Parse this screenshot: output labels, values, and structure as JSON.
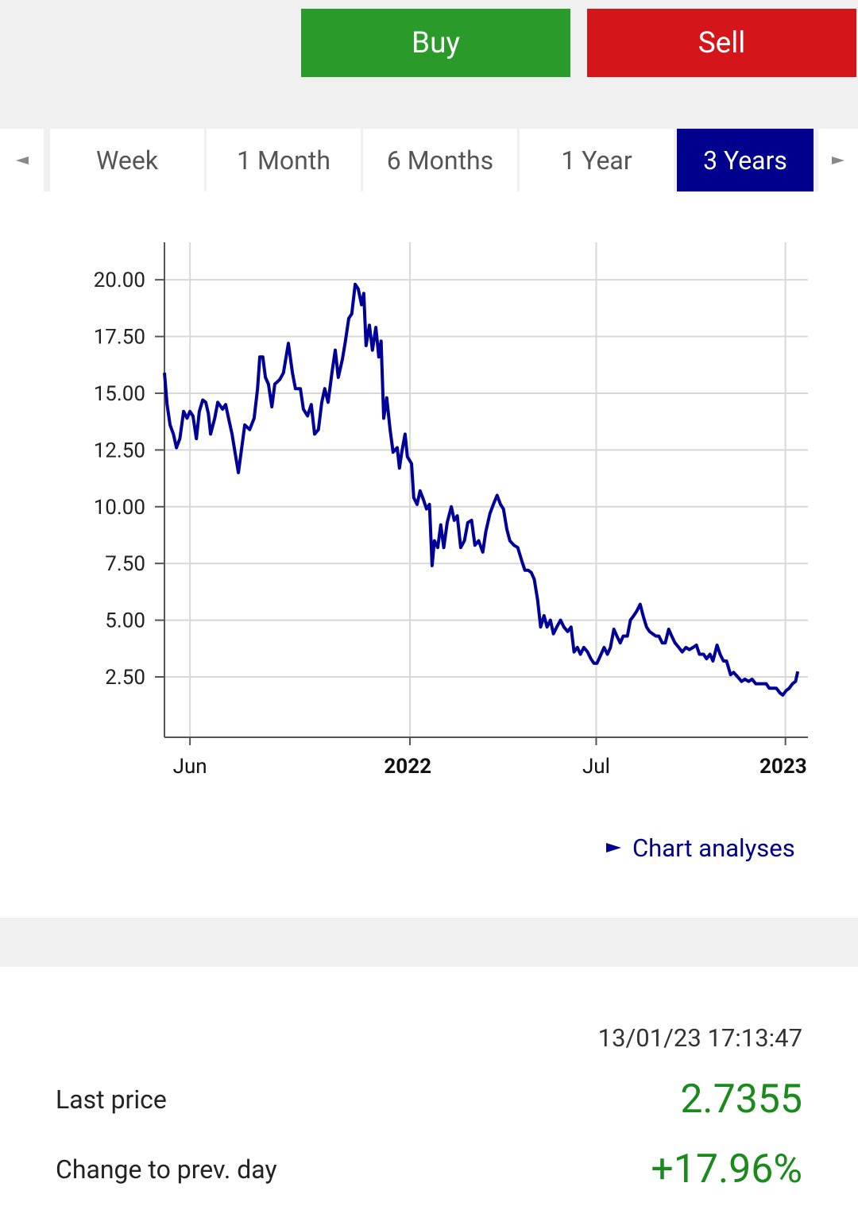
{
  "actions": {
    "buy": "Buy",
    "sell": "Sell"
  },
  "tabs": [
    {
      "label": "Week",
      "selected": false
    },
    {
      "label": "1 Month",
      "selected": false
    },
    {
      "label": "6 Months",
      "selected": false
    },
    {
      "label": "1 Year",
      "selected": false
    },
    {
      "label": "3 Years",
      "selected": true
    }
  ],
  "chart_data": {
    "type": "line",
    "x": [
      2021.346,
      2021.353,
      2021.361,
      2021.37,
      2021.378,
      2021.387,
      2021.397,
      2021.406,
      2021.414,
      2021.422,
      2021.431,
      2021.439,
      2021.448,
      2021.456,
      2021.463,
      2021.469,
      2021.48,
      2021.488,
      2021.501,
      2021.509,
      2021.518,
      2021.526,
      2021.534,
      2021.543,
      2021.551,
      2021.56,
      2021.573,
      2021.585,
      2021.594,
      2021.6,
      2021.608,
      2021.615,
      2021.623,
      2021.632,
      2021.64,
      2021.653,
      2021.663,
      2021.676,
      2021.687,
      2021.695,
      2021.708,
      2021.716,
      2021.727,
      2021.737,
      2021.746,
      2021.756,
      2021.765,
      2021.773,
      2021.782,
      2021.792,
      2021.801,
      2021.809,
      2021.82,
      2021.828,
      2021.837,
      2021.845,
      2021.854,
      2021.862,
      2021.871,
      2021.877,
      2021.883,
      2021.892,
      2021.9,
      2021.909,
      2021.917,
      2021.923,
      2021.93,
      2021.938,
      2021.947,
      2021.955,
      2021.966,
      2021.972,
      2021.978,
      2021.987,
      2021.993,
      2022.004,
      2022.01,
      2022.019,
      2022.027,
      2022.036,
      2022.044,
      2022.052,
      2022.059,
      2022.065,
      2022.074,
      2022.082,
      2022.09,
      2022.099,
      2022.11,
      2022.118,
      2022.126,
      2022.135,
      2022.145,
      2022.154,
      2022.164,
      2022.173,
      2022.183,
      2022.194,
      2022.202,
      2022.213,
      2022.222,
      2022.232,
      2022.241,
      2022.249,
      2022.258,
      2022.266,
      2022.277,
      2022.287,
      2022.298,
      2022.306,
      2022.315,
      2022.323,
      2022.331,
      2022.34,
      2022.348,
      2022.357,
      2022.365,
      2022.374,
      2022.382,
      2022.391,
      2022.401,
      2022.41,
      2022.42,
      2022.429,
      2022.437,
      2022.446,
      2022.454,
      2022.463,
      2022.473,
      2022.482,
      2022.49,
      2022.498,
      2022.509,
      2022.517,
      2022.526,
      2022.534,
      2022.543,
      2022.551,
      2022.56,
      2022.568,
      2022.579,
      2022.587,
      2022.596,
      2022.604,
      2022.613,
      2022.621,
      2022.63,
      2022.638,
      2022.646,
      2022.655,
      2022.663,
      2022.672,
      2022.68,
      2022.689,
      2022.697,
      2022.706,
      2022.716,
      2022.725,
      2022.735,
      2022.744,
      2022.754,
      2022.763,
      2022.771,
      2022.782,
      2022.79,
      2022.799,
      2022.807,
      2022.818,
      2022.826,
      2022.835,
      2022.843,
      2022.854,
      2022.862,
      2022.873,
      2022.883,
      2022.892,
      2022.902,
      2022.911,
      2022.921,
      2022.93,
      2022.938,
      2022.949,
      2022.957,
      2022.966,
      2022.976,
      2022.985,
      2022.993,
      2023.002,
      2023.01,
      2023.019,
      2023.027,
      2023.033
    ],
    "series": [
      {
        "color": "#000099",
        "values": [
          15.9,
          14.5,
          13.6,
          13.2,
          12.6,
          13.0,
          14.2,
          13.9,
          14.2,
          14.0,
          13.0,
          14.2,
          14.7,
          14.6,
          14.1,
          13.2,
          13.9,
          14.6,
          14.3,
          14.5,
          13.8,
          13.2,
          12.4,
          11.5,
          12.5,
          13.6,
          13.4,
          13.9,
          15.2,
          16.6,
          16.6,
          15.7,
          15.4,
          14.4,
          15.4,
          15.6,
          15.9,
          17.2,
          15.9,
          15.2,
          15.2,
          14.3,
          14.0,
          14.5,
          13.2,
          13.4,
          14.6,
          15.2,
          14.6,
          15.9,
          16.9,
          15.7,
          16.5,
          17.3,
          18.3,
          18.5,
          19.8,
          19.6,
          18.9,
          19.4,
          17.1,
          18.0,
          16.9,
          17.9,
          16.6,
          17.3,
          13.9,
          14.8,
          13.4,
          12.4,
          12.6,
          11.7,
          12.4,
          13.2,
          12.2,
          11.9,
          10.4,
          10.1,
          10.7,
          10.3,
          9.9,
          10.1,
          7.4,
          8.5,
          8.2,
          9.2,
          8.2,
          9.3,
          10.0,
          9.4,
          9.6,
          8.2,
          8.5,
          9.3,
          9.4,
          8.3,
          8.5,
          8.0,
          8.9,
          9.7,
          10.1,
          10.5,
          10.1,
          9.9,
          9.0,
          8.5,
          8.3,
          8.2,
          7.6,
          7.2,
          7.2,
          7.1,
          6.8,
          5.9,
          4.7,
          5.2,
          4.7,
          5.0,
          4.4,
          4.7,
          5.0,
          4.7,
          4.5,
          4.7,
          3.6,
          3.8,
          3.5,
          3.8,
          3.6,
          3.3,
          3.1,
          3.1,
          3.5,
          3.8,
          3.5,
          3.8,
          4.6,
          4.3,
          4.0,
          4.3,
          4.3,
          5.0,
          5.2,
          5.4,
          5.7,
          5.2,
          4.7,
          4.5,
          4.4,
          4.3,
          4.3,
          4.0,
          4.0,
          4.6,
          4.3,
          4.0,
          3.8,
          3.6,
          3.8,
          3.7,
          3.8,
          3.9,
          3.5,
          3.5,
          3.3,
          3.5,
          3.2,
          3.9,
          3.5,
          3.2,
          3.2,
          2.6,
          2.7,
          2.5,
          2.3,
          2.4,
          2.3,
          2.4,
          2.2,
          2.2,
          2.2,
          2.2,
          2.0,
          2.0,
          2.0,
          1.8,
          1.7,
          1.9,
          2.0,
          2.2,
          2.3,
          2.74
        ]
      }
    ],
    "xlim": [
      2021.346,
      2023.06
    ],
    "ylim": [
      -0.16,
      21.65
    ],
    "xticks": [
      {
        "value": 2021.414,
        "label": "Jun"
      },
      2022,
      {
        "value": 2022.496,
        "label": "Jul"
      },
      2023
    ],
    "yticks": [
      {
        "value": 2.5,
        "label": "2.50"
      },
      {
        "value": 5,
        "label": "5.00"
      },
      {
        "value": 7.5,
        "label": "7.50"
      },
      {
        "value": 10,
        "label": "10.00"
      },
      {
        "value": 12.5,
        "label": "12.50"
      },
      {
        "value": 15,
        "label": "15.00"
      },
      {
        "value": 17.5,
        "label": "17.50"
      },
      {
        "value": 20,
        "label": "20.00"
      }
    ],
    "grid": true
  },
  "link": "Chart analyses",
  "quote": {
    "timestamp": "13/01/23 17:13:47",
    "rows": [
      {
        "label": "Last price",
        "value": "2.7355"
      },
      {
        "label": "Change to prev. day",
        "value": "+17.96%"
      }
    ]
  }
}
